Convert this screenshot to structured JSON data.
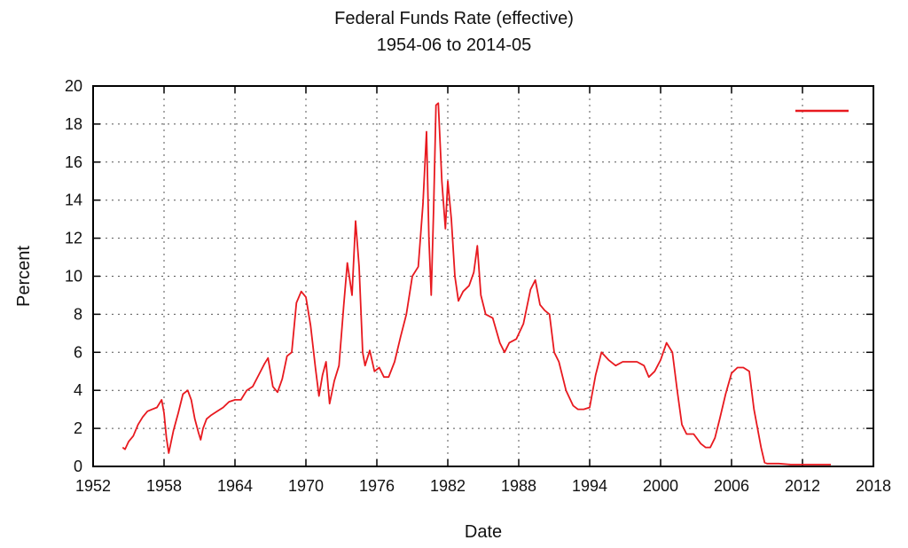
{
  "chart_data": {
    "type": "line",
    "title": "Federal Funds Rate (effective)",
    "subtitle": "1954-06 to 2014-05",
    "xlabel": "Date",
    "ylabel": "Percent",
    "xlim": [
      1952,
      2018
    ],
    "ylim": [
      0,
      20
    ],
    "x_ticks": [
      "1952",
      "1958",
      "1964",
      "1970",
      "1976",
      "1982",
      "1988",
      "1994",
      "2000",
      "2006",
      "2012",
      "2018"
    ],
    "y_ticks": [
      "0",
      "2",
      "4",
      "6",
      "8",
      "10",
      "12",
      "14",
      "16",
      "18",
      "20"
    ],
    "grid": true,
    "legend_position": "top-right",
    "series_color": "#e8191f",
    "series": [
      {
        "x": [
          1954.5,
          1954.7,
          1955.0,
          1955.4,
          1955.8,
          1956.2,
          1956.6,
          1957.0,
          1957.4,
          1957.8,
          1958.0,
          1958.2,
          1958.4,
          1958.8,
          1959.2,
          1959.6,
          1960.0,
          1960.3,
          1960.6,
          1960.9,
          1961.1,
          1961.3,
          1961.6,
          1962.0,
          1962.5,
          1963.0,
          1963.5,
          1964.0,
          1964.5,
          1965.0,
          1965.5,
          1966.0,
          1966.5,
          1966.8,
          1967.2,
          1967.6,
          1968.0,
          1968.4,
          1968.8,
          1969.2,
          1969.6,
          1970.0,
          1970.4,
          1970.8,
          1971.1,
          1971.4,
          1971.7,
          1972.0,
          1972.4,
          1972.8,
          1973.2,
          1973.5,
          1973.9,
          1974.2,
          1974.5,
          1974.8,
          1975.0,
          1975.4,
          1975.8,
          1976.2,
          1976.6,
          1977.0,
          1977.5,
          1978.0,
          1978.5,
          1979.0,
          1979.5,
          1979.9,
          1980.2,
          1980.4,
          1980.6,
          1980.8,
          1981.0,
          1981.2,
          1981.5,
          1981.8,
          1982.0,
          1982.3,
          1982.6,
          1982.9,
          1983.3,
          1983.8,
          1984.2,
          1984.5,
          1984.8,
          1985.2,
          1985.8,
          1986.4,
          1986.8,
          1987.2,
          1987.8,
          1988.4,
          1989.0,
          1989.4,
          1989.8,
          1990.2,
          1990.6,
          1991.0,
          1991.4,
          1992.0,
          1992.6,
          1993.0,
          1993.5,
          1994.0,
          1994.5,
          1995.0,
          1995.6,
          1996.2,
          1996.8,
          1997.4,
          1998.0,
          1998.6,
          1999.0,
          1999.5,
          2000.0,
          2000.5,
          2001.0,
          2001.4,
          2001.8,
          2002.2,
          2002.8,
          2003.4,
          2003.8,
          2004.2,
          2004.6,
          2005.0,
          2005.5,
          2006.0,
          2006.5,
          2007.0,
          2007.5,
          2007.9,
          2008.2,
          2008.5,
          2008.8,
          2009.0,
          2009.5,
          2010.0,
          2011.0,
          2012.0,
          2013.0,
          2014.0,
          2014.4
        ],
        "y": [
          1.0,
          0.9,
          1.3,
          1.6,
          2.2,
          2.6,
          2.9,
          3.0,
          3.1,
          3.5,
          2.8,
          1.5,
          0.7,
          1.9,
          2.8,
          3.8,
          4.0,
          3.5,
          2.5,
          1.8,
          1.4,
          2.0,
          2.5,
          2.7,
          2.9,
          3.1,
          3.4,
          3.5,
          3.5,
          4.0,
          4.2,
          4.8,
          5.4,
          5.7,
          4.2,
          3.9,
          4.6,
          5.8,
          6.0,
          8.6,
          9.2,
          8.9,
          7.4,
          5.2,
          3.7,
          4.8,
          5.5,
          3.3,
          4.5,
          5.3,
          8.5,
          10.7,
          9.0,
          12.9,
          10.5,
          6.0,
          5.3,
          6.1,
          5.0,
          5.2,
          4.7,
          4.7,
          5.5,
          6.8,
          8.0,
          10.0,
          10.5,
          13.8,
          17.6,
          12.0,
          9.0,
          13.5,
          19.0,
          19.1,
          15.0,
          12.5,
          15.0,
          13.0,
          10.0,
          8.7,
          9.2,
          9.5,
          10.2,
          11.6,
          9.0,
          8.0,
          7.8,
          6.5,
          6.0,
          6.5,
          6.7,
          7.5,
          9.3,
          9.8,
          8.5,
          8.2,
          8.0,
          6.0,
          5.5,
          4.0,
          3.2,
          3.0,
          3.0,
          3.1,
          4.8,
          6.0,
          5.6,
          5.3,
          5.5,
          5.5,
          5.5,
          5.3,
          4.7,
          5.0,
          5.6,
          6.5,
          6.0,
          4.0,
          2.2,
          1.7,
          1.7,
          1.2,
          1.0,
          1.0,
          1.5,
          2.5,
          3.8,
          4.9,
          5.2,
          5.2,
          5.0,
          3.0,
          2.0,
          1.0,
          0.2,
          0.15,
          0.15,
          0.15,
          0.1,
          0.1,
          0.1,
          0.1,
          0.1
        ]
      }
    ]
  }
}
